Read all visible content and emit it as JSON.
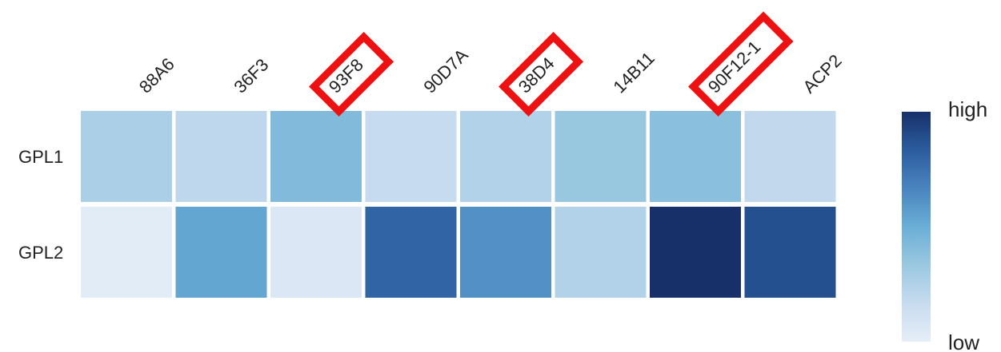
{
  "chart_data": {
    "type": "heatmap",
    "columns": [
      "88A6",
      "36F3",
      "93F8",
      "90D7A",
      "38D4",
      "14B11",
      "90F12-1",
      "ACP2"
    ],
    "rows": [
      "GPL1",
      "GPL2"
    ],
    "values": [
      [
        0.27,
        0.2,
        0.42,
        0.17,
        0.25,
        0.34,
        0.39,
        0.19
      ],
      [
        0.02,
        0.53,
        0.06,
        0.8,
        0.62,
        0.25,
        1.0,
        0.88
      ]
    ],
    "highlighted_columns": [
      "93F8",
      "38D4",
      "90F12-1"
    ],
    "legend": {
      "high_label": "high",
      "low_label": "low",
      "colors": [
        "#e6eef8",
        "#c7dbef",
        "#9ac8e0",
        "#6aaed6",
        "#4a84bf",
        "#2b5c9e",
        "#17306a"
      ]
    },
    "highlight_color": "#ee1111"
  }
}
